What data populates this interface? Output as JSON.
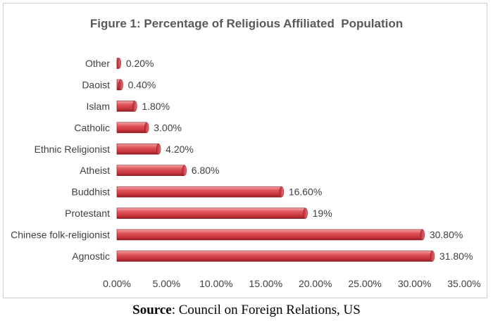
{
  "chart_data": {
    "type": "bar",
    "orientation": "horizontal",
    "title": "Figure 1: Percentage of Religious Affiliated  Population",
    "categories": [
      "Other",
      "Daoist",
      "Islam",
      "Catholic",
      "Ethnic Religionist",
      "Atheist",
      "Buddhist",
      "Protestant",
      "Chinese folk-religionist",
      "Agnostic"
    ],
    "values": [
      0.2,
      0.4,
      1.8,
      3.0,
      4.2,
      6.8,
      16.6,
      19.0,
      30.8,
      31.8
    ],
    "value_labels": [
      "0.20%",
      "0.40%",
      "1.80%",
      "3.00%",
      "4.20%",
      "6.80%",
      "16.60%",
      "19%",
      "30.80%",
      "31.80%"
    ],
    "x_ticks": [
      0,
      5,
      10,
      15,
      20,
      25,
      30,
      35
    ],
    "x_tick_labels": [
      "0.00%",
      "5.00%",
      "10.00%",
      "15.00%",
      "20.00%",
      "25.00%",
      "30.00%",
      "35.00%"
    ],
    "xlim": [
      0,
      35
    ],
    "xlabel": "",
    "ylabel": "",
    "grid": false,
    "legend": "none",
    "bar_color": "#d9444d"
  },
  "source": {
    "label": "Source",
    "text": ": Council on Foreign Relations, US"
  }
}
